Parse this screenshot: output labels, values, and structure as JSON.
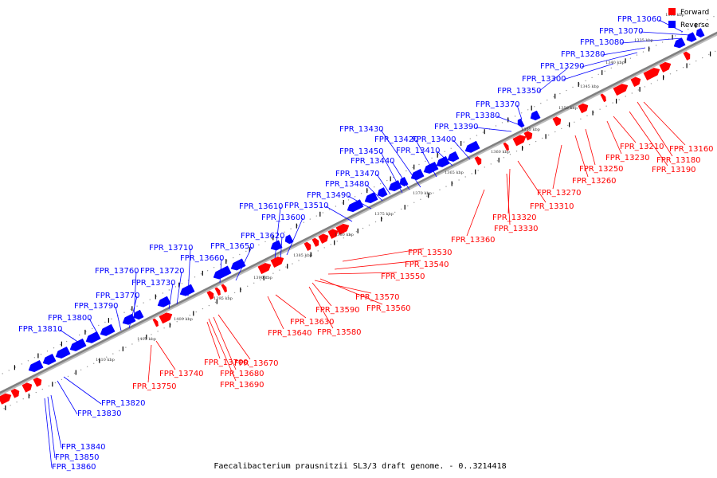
{
  "colors": {
    "forward": "#ff0000",
    "reverse": "#0000ff",
    "axis": "#808080",
    "tick": "#000000",
    "dot": "#999999",
    "background": "#ffffff"
  },
  "legend": {
    "forward_label": "Forward",
    "reverse_label": "Reverse"
  },
  "caption": "Faecalibacterium prausnitzii SL3/3 draft genome. - 0..3214418",
  "kbp_labels": [
    "1330 kbp",
    "1335 kbp",
    "1340 kbp",
    "1345 kbp",
    "1350 kbp",
    "1355 kbp",
    "1360 kbp",
    "1365 kbp",
    "1370 kbp",
    "1375 kbp",
    "1380 kbp",
    "1385 kbp",
    "1390 kbp",
    "1395 kbp",
    "1400 kbp",
    "1405 kbp",
    "1410 kbp"
  ],
  "reverse_labels": [
    "FPR_13060",
    "FPR_13070",
    "FPR_13080",
    "FPR_13280",
    "FPR_13290",
    "FPR_13300",
    "FPR_13350",
    "FPR_13370",
    "FPR_13380",
    "FPR_13390",
    "FPR_13400",
    "FPR_13410",
    "FPR_13420",
    "FPR_13430",
    "FPR_13440",
    "FPR_13450",
    "FPR_13470",
    "FPR_13480",
    "FPR_13490",
    "FPR_13510",
    "FPR_13600",
    "FPR_13610",
    "FPR_13620",
    "FPR_13650",
    "FPR_13660",
    "FPR_13710",
    "FPR_13720",
    "FPR_13730",
    "FPR_13760",
    "FPR_13770",
    "FPR_13790",
    "FPR_13800",
    "FPR_13810",
    "FPR_13820",
    "FPR_13830",
    "FPR_13840",
    "FPR_13850",
    "FPR_13860"
  ],
  "forward_labels": [
    "FPR_13160",
    "FPR_13180",
    "FPR_13190",
    "FPR_13210",
    "FPR_13230",
    "FPR_13250",
    "FPR_13260",
    "FPR_13270",
    "FPR_13310",
    "FPR_13320",
    "FPR_13330",
    "FPR_13360",
    "FPR_13530",
    "FPR_13540",
    "FPR_13550",
    "FPR_13560",
    "FPR_13570",
    "FPR_13580",
    "FPR_13590",
    "FPR_13630",
    "FPR_13640",
    "FPR_13670",
    "FPR_13680",
    "FPR_13690",
    "FPR_13700",
    "FPR_13740",
    "FPR_13750"
  ]
}
